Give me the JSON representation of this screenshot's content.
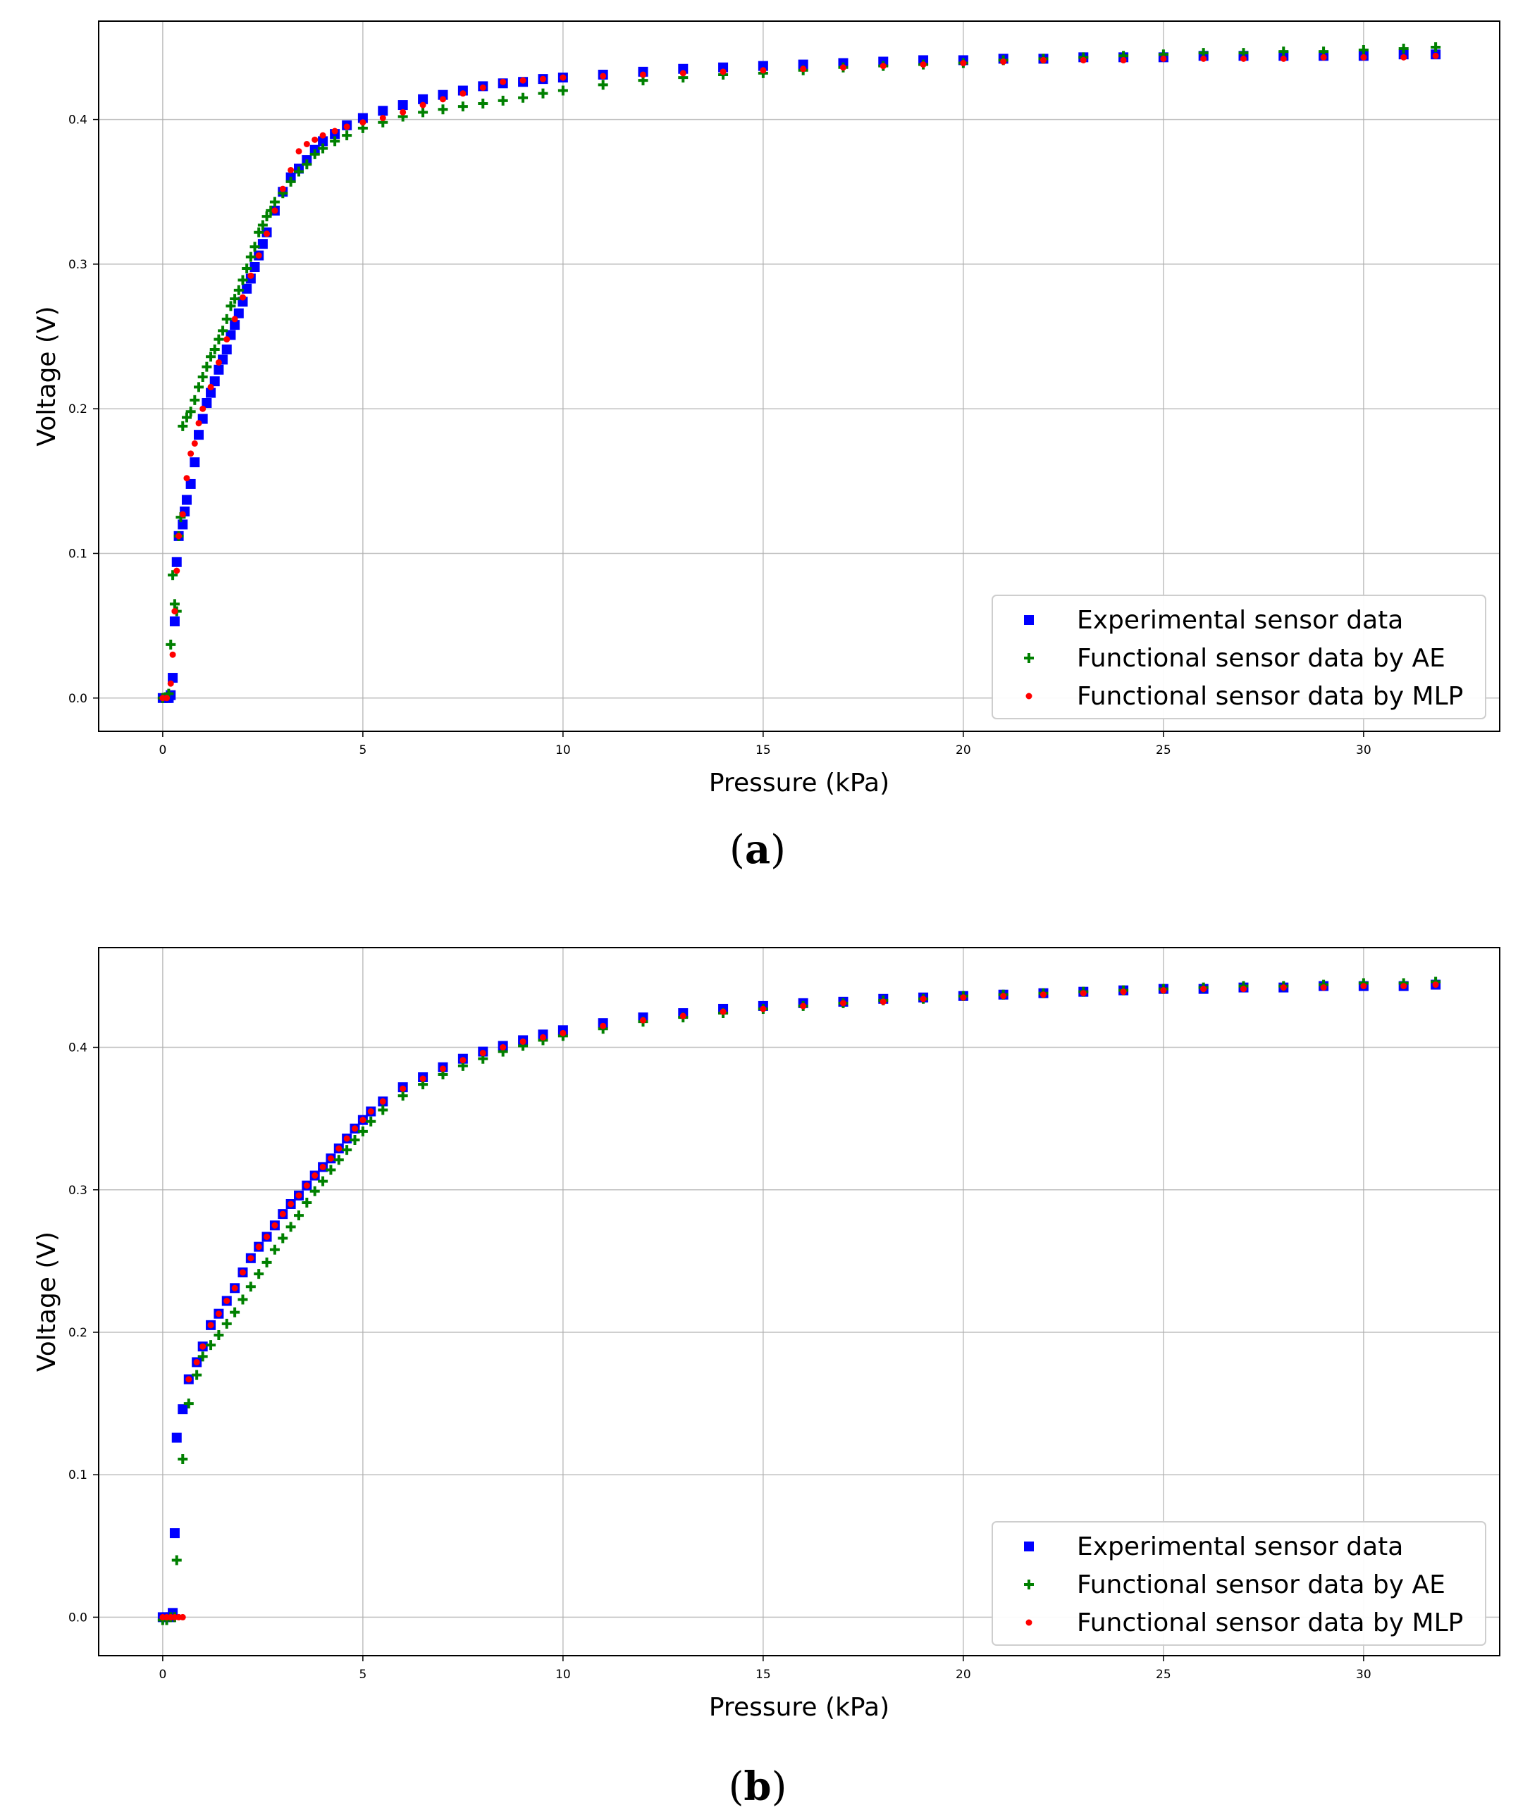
{
  "chart_data": [
    {
      "type": "scatter",
      "panel_label": "(a)",
      "panel_open": "(",
      "panel_letter": "a",
      "panel_close": ")",
      "xlabel": "Pressure (kPa)",
      "ylabel": "Voltage (V)",
      "xlim": [
        -1.6,
        33.4
      ],
      "ylim": [
        -0.023,
        0.468
      ],
      "xticks": [
        0,
        5,
        10,
        15,
        20,
        25,
        30
      ],
      "yticks": [
        0.0,
        0.1,
        0.2,
        0.3,
        0.4
      ],
      "ytick_labels": [
        "0.0",
        "0.1",
        "0.2",
        "0.3",
        "0.4"
      ],
      "grid": true,
      "legend_position": "lower-right",
      "series": [
        {
          "name": "Experimental sensor data",
          "marker": "square",
          "color": "#0000ff",
          "x": [
            0,
            0.1,
            0.15,
            0.2,
            0.25,
            0.3,
            0.35,
            0.4,
            0.5,
            0.55,
            0.6,
            0.7,
            0.8,
            0.9,
            1.0,
            1.1,
            1.2,
            1.3,
            1.4,
            1.5,
            1.6,
            1.7,
            1.8,
            1.9,
            2.0,
            2.1,
            2.2,
            2.3,
            2.4,
            2.5,
            2.6,
            2.8,
            3.0,
            3.2,
            3.4,
            3.6,
            3.8,
            4.0,
            4.3,
            4.6,
            5.0,
            5.5,
            6.0,
            6.5,
            7.0,
            7.5,
            8.0,
            8.5,
            9.0,
            9.5,
            10,
            11,
            12,
            13,
            14,
            15,
            16,
            17,
            18,
            19,
            20,
            21,
            22,
            23,
            24,
            25,
            26,
            27,
            28,
            29,
            30,
            31,
            31.8
          ],
          "y": [
            0,
            0,
            0,
            0.002,
            0.014,
            0.053,
            0.094,
            0.112,
            0.12,
            0.129,
            0.137,
            0.148,
            0.163,
            0.182,
            0.193,
            0.204,
            0.211,
            0.219,
            0.227,
            0.234,
            0.241,
            0.251,
            0.258,
            0.266,
            0.274,
            0.283,
            0.29,
            0.298,
            0.306,
            0.314,
            0.322,
            0.337,
            0.35,
            0.36,
            0.366,
            0.372,
            0.379,
            0.385,
            0.39,
            0.396,
            0.401,
            0.406,
            0.41,
            0.414,
            0.417,
            0.42,
            0.423,
            0.425,
            0.426,
            0.428,
            0.429,
            0.431,
            0.433,
            0.435,
            0.436,
            0.437,
            0.438,
            0.439,
            0.44,
            0.441,
            0.441,
            0.442,
            0.442,
            0.443,
            0.443,
            0.443,
            0.444,
            0.444,
            0.444,
            0.444,
            0.444,
            0.445,
            0.445
          ]
        },
        {
          "name": "Functional sensor data by AE",
          "marker": "plus",
          "color": "#008000",
          "x": [
            0,
            0.15,
            0.2,
            0.25,
            0.3,
            0.35,
            0.4,
            0.45,
            0.5,
            0.6,
            0.7,
            0.8,
            0.9,
            1.0,
            1.1,
            1.2,
            1.3,
            1.4,
            1.5,
            1.6,
            1.7,
            1.8,
            1.9,
            2.0,
            2.1,
            2.2,
            2.3,
            2.4,
            2.5,
            2.6,
            2.7,
            2.8,
            3.0,
            3.2,
            3.4,
            3.6,
            3.8,
            4.0,
            4.3,
            4.6,
            5.0,
            5.5,
            6.0,
            6.5,
            7.0,
            7.5,
            8.0,
            8.5,
            9.0,
            9.5,
            10,
            11,
            12,
            13,
            14,
            15,
            16,
            17,
            18,
            19,
            20,
            21,
            22,
            23,
            24,
            25,
            26,
            27,
            28,
            29,
            30,
            31,
            31.8
          ],
          "y": [
            0,
            0.003,
            0.037,
            0.085,
            0.065,
            0.06,
            0.112,
            0.125,
            0.188,
            0.194,
            0.198,
            0.206,
            0.215,
            0.222,
            0.229,
            0.236,
            0.241,
            0.248,
            0.254,
            0.262,
            0.271,
            0.276,
            0.282,
            0.289,
            0.297,
            0.305,
            0.312,
            0.322,
            0.327,
            0.333,
            0.337,
            0.343,
            0.349,
            0.357,
            0.364,
            0.369,
            0.376,
            0.38,
            0.385,
            0.389,
            0.394,
            0.398,
            0.402,
            0.405,
            0.407,
            0.409,
            0.411,
            0.413,
            0.415,
            0.418,
            0.42,
            0.424,
            0.427,
            0.429,
            0.431,
            0.432,
            0.434,
            0.436,
            0.437,
            0.438,
            0.439,
            0.441,
            0.442,
            0.443,
            0.444,
            0.445,
            0.446,
            0.446,
            0.447,
            0.447,
            0.448,
            0.449,
            0.45
          ]
        },
        {
          "name": "Functional sensor data by MLP",
          "marker": "dot",
          "color": "#ff0000",
          "x": [
            0,
            0.1,
            0.2,
            0.25,
            0.3,
            0.35,
            0.4,
            0.5,
            0.6,
            0.7,
            0.8,
            0.9,
            1.0,
            1.2,
            1.4,
            1.6,
            1.8,
            2.0,
            2.2,
            2.4,
            2.6,
            2.8,
            3.0,
            3.2,
            3.4,
            3.6,
            3.8,
            4.0,
            4.3,
            4.6,
            5.0,
            5.5,
            6.0,
            6.5,
            7.0,
            7.5,
            8.0,
            8.5,
            9.0,
            9.5,
            10,
            11,
            12,
            13,
            14,
            15,
            16,
            17,
            18,
            19,
            20,
            21,
            22,
            23,
            24,
            25,
            26,
            27,
            28,
            29,
            30,
            31,
            31.8
          ],
          "y": [
            0,
            0,
            0.01,
            0.03,
            0.06,
            0.088,
            0.112,
            0.127,
            0.152,
            0.169,
            0.176,
            0.19,
            0.2,
            0.215,
            0.232,
            0.248,
            0.262,
            0.277,
            0.292,
            0.306,
            0.321,
            0.337,
            0.352,
            0.365,
            0.378,
            0.383,
            0.386,
            0.389,
            0.392,
            0.395,
            0.398,
            0.401,
            0.405,
            0.41,
            0.414,
            0.418,
            0.422,
            0.426,
            0.427,
            0.428,
            0.429,
            0.43,
            0.431,
            0.432,
            0.433,
            0.434,
            0.435,
            0.436,
            0.437,
            0.438,
            0.439,
            0.44,
            0.441,
            0.441,
            0.441,
            0.442,
            0.442,
            0.442,
            0.442,
            0.443,
            0.443,
            0.443,
            0.444
          ]
        }
      ]
    },
    {
      "type": "scatter",
      "panel_label": "(b)",
      "panel_open": "(",
      "panel_letter": "b",
      "panel_close": ")",
      "xlabel": "Pressure (kPa)",
      "ylabel": "Voltage (V)",
      "xlim": [
        -1.6,
        33.4
      ],
      "ylim": [
        -0.027,
        0.47
      ],
      "xticks": [
        0,
        5,
        10,
        15,
        20,
        25,
        30
      ],
      "yticks": [
        0.0,
        0.1,
        0.2,
        0.3,
        0.4
      ],
      "ytick_labels": [
        "0.0",
        "0.1",
        "0.2",
        "0.3",
        "0.4"
      ],
      "grid": true,
      "legend_position": "lower-right",
      "series": [
        {
          "name": "Experimental sensor data",
          "marker": "square",
          "color": "#0000ff",
          "x": [
            0,
            0.1,
            0.2,
            0.25,
            0.3,
            0.35,
            0.5,
            0.65,
            0.85,
            1.0,
            1.2,
            1.4,
            1.6,
            1.8,
            2.0,
            2.2,
            2.4,
            2.6,
            2.8,
            3.0,
            3.2,
            3.4,
            3.6,
            3.8,
            4.0,
            4.2,
            4.4,
            4.6,
            4.8,
            5.0,
            5.2,
            5.5,
            6.0,
            6.5,
            7.0,
            7.5,
            8.0,
            8.5,
            9.0,
            9.5,
            10,
            11,
            12,
            13,
            14,
            15,
            16,
            17,
            18,
            19,
            20,
            21,
            22,
            23,
            24,
            25,
            26,
            27,
            28,
            29,
            30,
            31,
            31.8
          ],
          "y": [
            0,
            0,
            0,
            0.003,
            0.059,
            0.126,
            0.146,
            0.167,
            0.179,
            0.19,
            0.205,
            0.213,
            0.222,
            0.231,
            0.242,
            0.252,
            0.26,
            0.267,
            0.275,
            0.283,
            0.29,
            0.296,
            0.303,
            0.31,
            0.316,
            0.322,
            0.329,
            0.336,
            0.343,
            0.349,
            0.355,
            0.362,
            0.372,
            0.379,
            0.386,
            0.392,
            0.397,
            0.401,
            0.405,
            0.409,
            0.412,
            0.417,
            0.421,
            0.424,
            0.427,
            0.429,
            0.431,
            0.432,
            0.434,
            0.435,
            0.436,
            0.437,
            0.438,
            0.439,
            0.44,
            0.441,
            0.441,
            0.442,
            0.442,
            0.443,
            0.443,
            0.443,
            0.444
          ]
        },
        {
          "name": "Functional sensor data by AE",
          "marker": "plus",
          "color": "#008000",
          "x": [
            0,
            0.1,
            0.2,
            0.3,
            0.35,
            0.5,
            0.65,
            0.85,
            1.0,
            1.2,
            1.4,
            1.6,
            1.8,
            2.0,
            2.2,
            2.4,
            2.6,
            2.8,
            3.0,
            3.2,
            3.4,
            3.6,
            3.8,
            4.0,
            4.2,
            4.4,
            4.6,
            4.8,
            5.0,
            5.2,
            5.5,
            6.0,
            6.5,
            7.0,
            7.5,
            8.0,
            8.5,
            9.0,
            9.5,
            10,
            11,
            12,
            13,
            14,
            15,
            16,
            17,
            18,
            19,
            20,
            21,
            22,
            23,
            24,
            25,
            26,
            27,
            28,
            29,
            30,
            31,
            31.8
          ],
          "y": [
            -0.002,
            -0.002,
            0,
            0,
            0.04,
            0.111,
            0.15,
            0.17,
            0.183,
            0.191,
            0.198,
            0.206,
            0.214,
            0.223,
            0.232,
            0.241,
            0.249,
            0.258,
            0.266,
            0.274,
            0.282,
            0.291,
            0.299,
            0.306,
            0.314,
            0.321,
            0.328,
            0.335,
            0.341,
            0.348,
            0.356,
            0.366,
            0.374,
            0.381,
            0.387,
            0.392,
            0.397,
            0.401,
            0.405,
            0.408,
            0.413,
            0.418,
            0.421,
            0.424,
            0.427,
            0.429,
            0.431,
            0.433,
            0.434,
            0.436,
            0.437,
            0.438,
            0.439,
            0.44,
            0.441,
            0.442,
            0.443,
            0.443,
            0.444,
            0.445,
            0.445,
            0.446
          ]
        },
        {
          "name": "Functional sensor data by MLP",
          "marker": "dot",
          "color": "#ff0000",
          "x": [
            0,
            0.1,
            0.2,
            0.3,
            0.4,
            0.5,
            0.65,
            0.85,
            1.0,
            1.2,
            1.4,
            1.6,
            1.8,
            2.0,
            2.2,
            2.4,
            2.6,
            2.8,
            3.0,
            3.2,
            3.4,
            3.6,
            3.8,
            4.0,
            4.2,
            4.4,
            4.6,
            4.8,
            5.0,
            5.2,
            5.5,
            6.0,
            6.5,
            7.0,
            7.5,
            8.0,
            8.5,
            9.0,
            9.5,
            10,
            11,
            12,
            13,
            14,
            15,
            16,
            17,
            18,
            19,
            20,
            21,
            22,
            23,
            24,
            25,
            26,
            27,
            28,
            29,
            30,
            31,
            31.8
          ],
          "y": [
            0,
            0,
            0,
            0,
            0,
            0,
            0.167,
            0.179,
            0.19,
            0.205,
            0.213,
            0.222,
            0.231,
            0.242,
            0.252,
            0.26,
            0.267,
            0.275,
            0.283,
            0.29,
            0.296,
            0.303,
            0.31,
            0.316,
            0.322,
            0.329,
            0.336,
            0.343,
            0.349,
            0.355,
            0.362,
            0.371,
            0.378,
            0.385,
            0.391,
            0.396,
            0.4,
            0.404,
            0.407,
            0.41,
            0.415,
            0.419,
            0.422,
            0.425,
            0.427,
            0.429,
            0.431,
            0.432,
            0.434,
            0.435,
            0.436,
            0.437,
            0.438,
            0.439,
            0.44,
            0.441,
            0.441,
            0.442,
            0.442,
            0.443,
            0.443,
            0.444
          ]
        }
      ]
    }
  ]
}
